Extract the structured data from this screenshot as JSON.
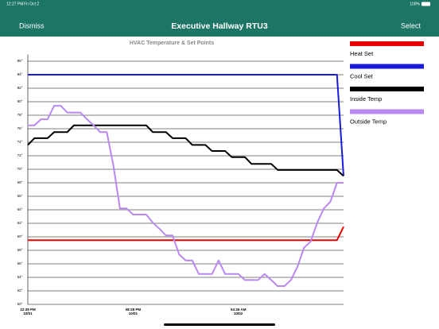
{
  "status_bar": {
    "time": "12:27 PM",
    "date": "Fri Oct 2",
    "battery": "100%"
  },
  "nav_bar": {
    "left_button": "Dismiss",
    "title": "Executive Hallway RTU3",
    "right_button": "Select"
  },
  "chart_data": {
    "type": "line",
    "title": "HVAC Temperature & Set Points",
    "categories": [
      "12:29 PM",
      null,
      null,
      null,
      null,
      null,
      null,
      null,
      null,
      null,
      null,
      null,
      null,
      null,
      null,
      null,
      "08:28 PM",
      null,
      null,
      null,
      null,
      null,
      null,
      null,
      null,
      null,
      null,
      null,
      null,
      null,
      null,
      null,
      "04:26 AM",
      null,
      null,
      null,
      null,
      null,
      null,
      null,
      null,
      null,
      null,
      null,
      null,
      null,
      null,
      null,
      null
    ],
    "category_dates": [
      "10/01",
      null,
      null,
      null,
      null,
      null,
      null,
      null,
      null,
      null,
      null,
      null,
      null,
      null,
      null,
      null,
      "10/01",
      null,
      null,
      null,
      null,
      null,
      null,
      null,
      null,
      null,
      null,
      null,
      null,
      null,
      null,
      null,
      "10/02",
      null,
      null,
      null,
      null,
      null,
      null,
      null,
      null,
      null,
      null,
      null,
      null,
      null,
      null,
      null,
      null
    ],
    "series": [
      {
        "name": "Heat Set",
        "color": "#e60000",
        "values": [
          59.5,
          59.5,
          59.5,
          59.5,
          59.5,
          59.5,
          59.5,
          59.5,
          59.5,
          59.5,
          59.5,
          59.5,
          59.5,
          59.5,
          59.5,
          59.5,
          59.5,
          59.5,
          59.5,
          59.5,
          59.5,
          59.5,
          59.5,
          59.5,
          59.5,
          59.5,
          59.5,
          59.5,
          59.5,
          59.5,
          59.5,
          59.5,
          59.5,
          59.5,
          59.5,
          59.5,
          59.5,
          59.5,
          59.5,
          59.5,
          59.5,
          59.5,
          59.5,
          59.5,
          59.5,
          59.5,
          59.5,
          59.5,
          61.5
        ]
      },
      {
        "name": "Cool Set",
        "color": "#1a1adb",
        "values": [
          84,
          84,
          84,
          84,
          84,
          84,
          84,
          84,
          84,
          84,
          84,
          84,
          84,
          84,
          84,
          84,
          84,
          84,
          84,
          84,
          84,
          84,
          84,
          84,
          84,
          84,
          84,
          84,
          84,
          84,
          84,
          84,
          84,
          84,
          84,
          84,
          84,
          84,
          84,
          84,
          84,
          84,
          84,
          84,
          84,
          84,
          84,
          84,
          69
        ]
      },
      {
        "name": "Inside Temp",
        "color": "#000000",
        "values": [
          73.6,
          74.6,
          74.6,
          74.6,
          75.5,
          75.5,
          75.5,
          76.5,
          76.5,
          76.5,
          76.5,
          76.5,
          76.5,
          76.5,
          76.5,
          76.5,
          76.5,
          76.5,
          76.5,
          75.5,
          75.5,
          75.5,
          74.6,
          74.6,
          74.6,
          73.6,
          73.6,
          73.6,
          72.7,
          72.7,
          72.7,
          71.8,
          71.8,
          71.8,
          70.8,
          70.8,
          70.8,
          70.8,
          69.9,
          69.9,
          69.9,
          69.9,
          69.9,
          69.9,
          69.9,
          69.9,
          69.9,
          69.9,
          69.0
        ]
      },
      {
        "name": "Outside Temp",
        "color": "#b888f0",
        "values": [
          76.5,
          76.5,
          77.4,
          77.4,
          79.4,
          79.4,
          78.4,
          78.4,
          78.4,
          77.4,
          76.5,
          75.5,
          75.5,
          70.6,
          64.2,
          64.2,
          63.3,
          63.3,
          63.3,
          62.1,
          61.2,
          60.2,
          60.2,
          57.4,
          56.5,
          56.5,
          54.5,
          54.5,
          54.5,
          56.5,
          54.5,
          54.5,
          54.5,
          53.6,
          53.6,
          53.6,
          54.5,
          53.6,
          52.7,
          52.7,
          53.6,
          55.6,
          58.4,
          59.3,
          62.1,
          64.2,
          65.2,
          68.0,
          68.0
        ]
      }
    ],
    "ylim": [
      50,
      87
    ],
    "yticks": [
      {
        "value": 50,
        "label": "50°"
      },
      {
        "value": 52,
        "label": "52°"
      },
      {
        "value": 54,
        "label": "54°"
      },
      {
        "value": 56,
        "label": "56°"
      },
      {
        "value": 58,
        "label": "58°"
      },
      {
        "value": 60,
        "label": "60°"
      },
      {
        "value": 62,
        "label": "62°"
      },
      {
        "value": 64,
        "label": "64°"
      },
      {
        "value": 66,
        "label": "66°"
      },
      {
        "value": 68,
        "label": "68°"
      },
      {
        "value": 70,
        "label": "70°"
      },
      {
        "value": 72,
        "label": "72°"
      },
      {
        "value": 74,
        "label": "74°"
      },
      {
        "value": 76,
        "label": "76°"
      },
      {
        "value": 78,
        "label": "78°"
      },
      {
        "value": 80,
        "label": "80°"
      },
      {
        "value": 82,
        "label": "82°"
      },
      {
        "value": 84,
        "label": "84°"
      },
      {
        "value": 86,
        "label": "86°"
      }
    ],
    "grid": true,
    "legend": "right"
  }
}
